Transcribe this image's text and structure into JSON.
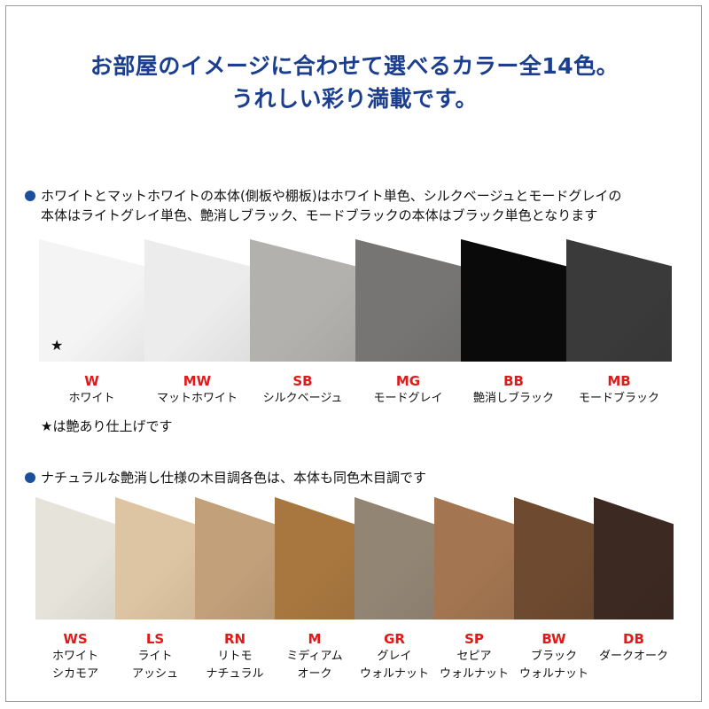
{
  "title_line1": "お部屋のイメージに合わせて選べるカラー全14色。",
  "title_line2": "うれしい彩り満載です。",
  "section1": {
    "note_line1": "ホワイトとマットホワイトの本体(側板や棚板)はホワイト単色、シルクベージュとモードグレイの",
    "note_line2": "本体はライトグレイ単色、艶消しブラック、モードブラックの本体はブラック単色となります",
    "star_mark": "★",
    "footnote": "★は艶あり仕上げです",
    "colors": [
      {
        "code": "W",
        "name": "ホワイト",
        "color": "#f4f4f4"
      },
      {
        "code": "MW",
        "name": "マットホワイト",
        "color": "#ececec"
      },
      {
        "code": "SB",
        "name": "シルクベージュ",
        "color": "#b3b1ae"
      },
      {
        "code": "MG",
        "name": "モードグレイ",
        "color": "#767573"
      },
      {
        "code": "BB",
        "name": "艶消しブラック",
        "color": "#0a0a0a"
      },
      {
        "code": "MB",
        "name": "モードブラック",
        "color": "#3a3a3a"
      }
    ]
  },
  "section2": {
    "note": "ナチュラルな艶消し仕様の木目調各色は、本体も同色木目調です",
    "colors": [
      {
        "code": "WS",
        "name1": "ホワイト",
        "name2": "シカモア",
        "color": "#e6e3da"
      },
      {
        "code": "LS",
        "name1": "ライト",
        "name2": "アッシュ",
        "color": "#ddc4a2"
      },
      {
        "code": "RN",
        "name1": "リトモ",
        "name2": "ナチュラル",
        "color": "#c2a07a"
      },
      {
        "code": "M",
        "name1": "ミディアム",
        "name2": "オーク",
        "color": "#a8773f"
      },
      {
        "code": "GR",
        "name1": "グレイ",
        "name2": "ウォルナット",
        "color": "#938574"
      },
      {
        "code": "SP",
        "name1": "セピア",
        "name2": "ウォルナット",
        "color": "#a37550"
      },
      {
        "code": "BW",
        "name1": "ブラック",
        "name2": "ウォルナット",
        "color": "#6e4a30"
      },
      {
        "code": "DB",
        "name1": "ダークオーク",
        "name2": "",
        "color": "#3c2a22"
      }
    ]
  }
}
